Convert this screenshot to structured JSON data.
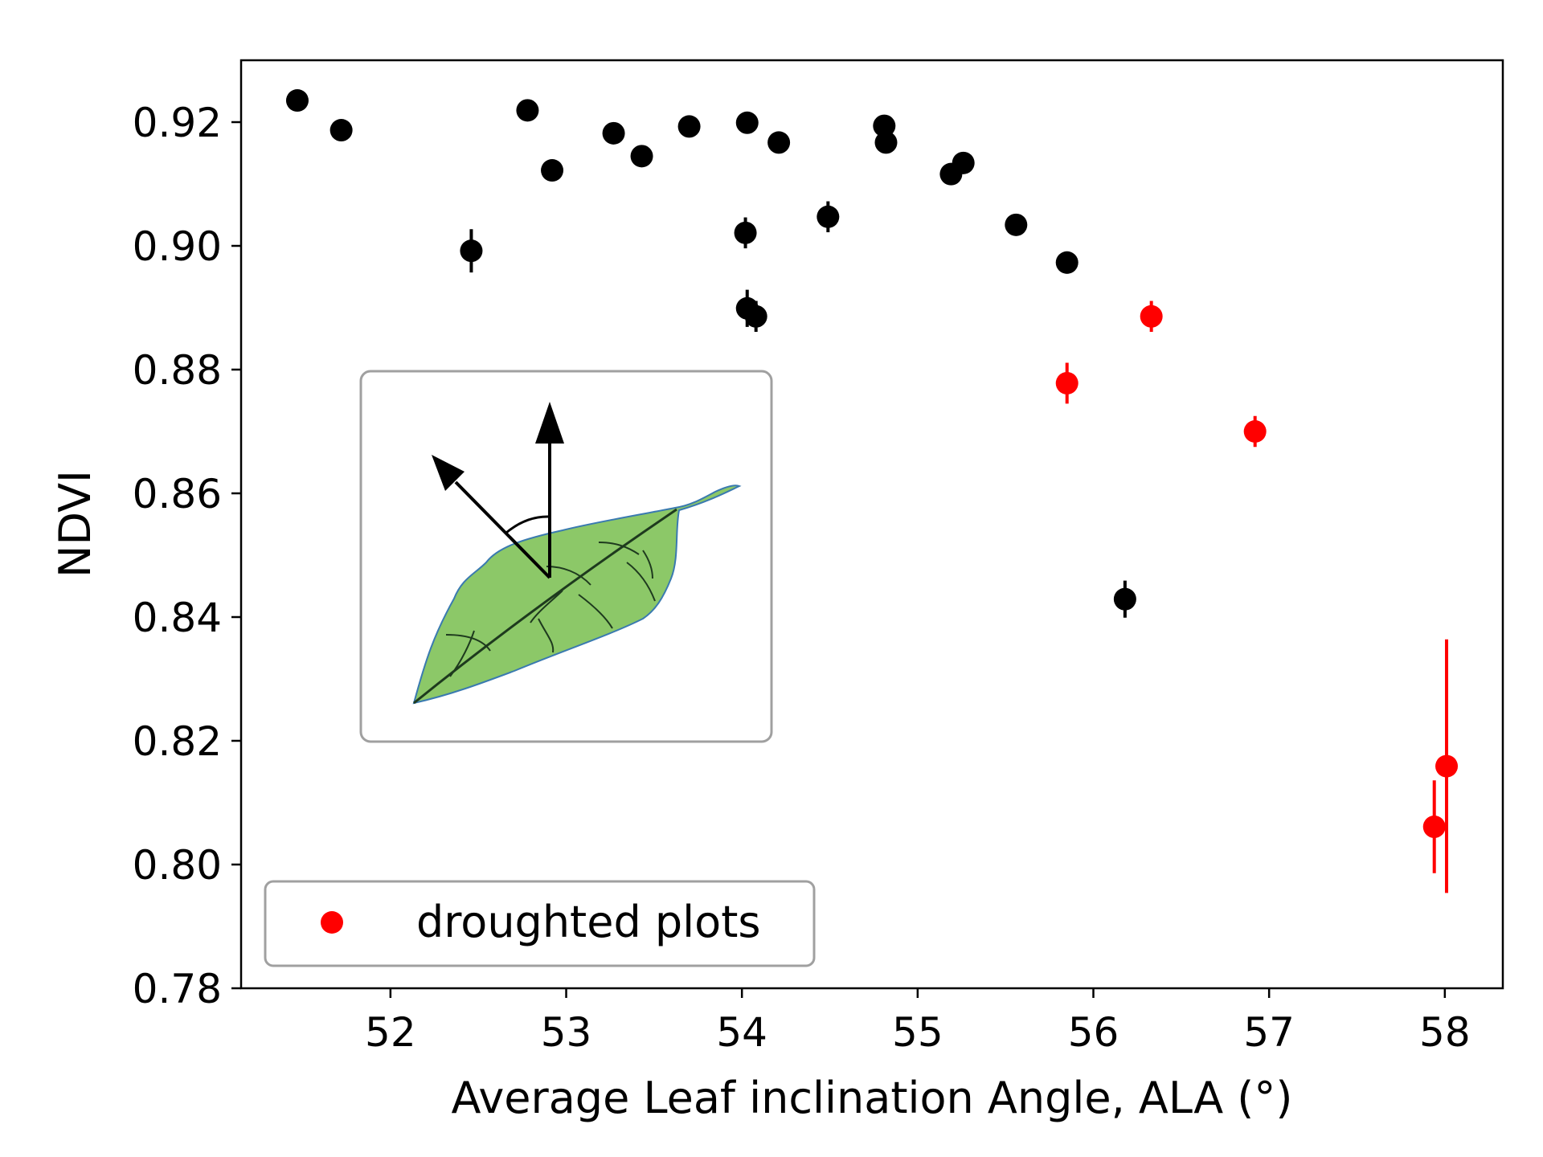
{
  "chart_data": {
    "type": "scatter",
    "xlabel": "Average Leaf inclination Angle, ALA (°)",
    "ylabel": "NDVI",
    "xlim": [
      51.15,
      58.33
    ],
    "ylim": [
      0.78,
      0.93
    ],
    "xticks": [
      52,
      53,
      54,
      55,
      56,
      57,
      58
    ],
    "xtick_labels": [
      "52",
      "53",
      "54",
      "55",
      "56",
      "57",
      "58"
    ],
    "yticks": [
      0.78,
      0.8,
      0.82,
      0.84,
      0.86,
      0.88,
      0.9,
      0.92
    ],
    "ytick_labels": [
      "0.78",
      "0.80",
      "0.82",
      "0.84",
      "0.86",
      "0.88",
      "0.90",
      "0.92"
    ],
    "grid": false,
    "legend": {
      "position": "lower-left",
      "entries": [
        {
          "label": "droughted plots",
          "color": "#ff0000"
        }
      ]
    },
    "inset": {
      "position": "middle-left",
      "content": "leaf-inclination-angle-diagram",
      "leaf_color": "#8cc868"
    },
    "series": [
      {
        "color": "#000000",
        "points": [
          {
            "x": 51.47,
            "y": 0.9235,
            "err": 0.0008
          },
          {
            "x": 51.72,
            "y": 0.9187,
            "err": 0.0008
          },
          {
            "x": 52.46,
            "y": 0.8992,
            "err": 0.0035
          },
          {
            "x": 52.78,
            "y": 0.9219,
            "err": 0.0008
          },
          {
            "x": 52.92,
            "y": 0.9122,
            "err": 0.0008
          },
          {
            "x": 53.27,
            "y": 0.9182,
            "err": 0.0008
          },
          {
            "x": 53.43,
            "y": 0.9145,
            "err": 0.0015
          },
          {
            "x": 53.7,
            "y": 0.9193,
            "err": 0.0008
          },
          {
            "x": 54.02,
            "y": 0.9021,
            "err": 0.0025
          },
          {
            "x": 54.03,
            "y": 0.9199,
            "err": 0.0008
          },
          {
            "x": 54.03,
            "y": 0.8899,
            "err": 0.003
          },
          {
            "x": 54.08,
            "y": 0.8886,
            "err": 0.0025
          },
          {
            "x": 54.21,
            "y": 0.9167,
            "err": 0.0008
          },
          {
            "x": 54.49,
            "y": 0.9047,
            "err": 0.0025
          },
          {
            "x": 54.81,
            "y": 0.9194,
            "err": 0.0008
          },
          {
            "x": 54.82,
            "y": 0.9167,
            "err": 0.0008
          },
          {
            "x": 55.19,
            "y": 0.9116,
            "err": 0.0015
          },
          {
            "x": 55.26,
            "y": 0.9134,
            "err": 0.0008
          },
          {
            "x": 55.56,
            "y": 0.9034,
            "err": 0.0008
          },
          {
            "x": 55.85,
            "y": 0.8973,
            "err": 0.0018
          },
          {
            "x": 56.18,
            "y": 0.8429,
            "err": 0.003
          }
        ]
      },
      {
        "name": "droughted plots",
        "color": "#ff0000",
        "points": [
          {
            "x": 55.85,
            "y": 0.8778,
            "err": 0.0033
          },
          {
            "x": 56.33,
            "y": 0.8886,
            "err": 0.0025
          },
          {
            "x": 56.92,
            "y": 0.87,
            "err": 0.0025
          },
          {
            "x": 57.94,
            "y": 0.8061,
            "err": 0.0075
          },
          {
            "x": 58.01,
            "y": 0.8159,
            "err": 0.0205
          }
        ]
      }
    ]
  }
}
